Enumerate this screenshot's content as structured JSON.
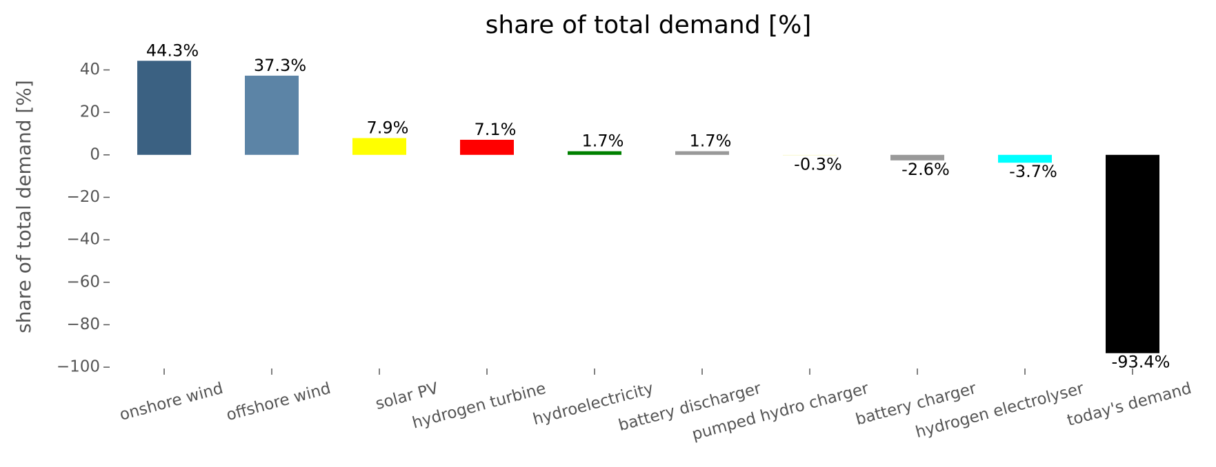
{
  "chart_data": {
    "type": "bar",
    "title": "share of total demand [%]",
    "ylabel": "share of total demand [%]",
    "categories": [
      "onshore wind",
      "offshore wind",
      "solar PV",
      "hydrogen turbine",
      "hydroelectricity",
      "battery discharger",
      "pumped hydro charger",
      "battery charger",
      "hydrogen electrolyser",
      "today's demand"
    ],
    "values": [
      44.3,
      37.3,
      7.9,
      7.1,
      1.7,
      1.7,
      -0.3,
      -2.6,
      -3.7,
      -93.4
    ],
    "value_labels": [
      "44.3%",
      "37.3%",
      "7.9%",
      "7.1%",
      "1.7%",
      "1.7%",
      "-0.3%",
      "-2.6%",
      "-3.7%",
      "-93.4%"
    ],
    "colors": [
      "#3b6182",
      "#5c84a6",
      "#ffff00",
      "#ff0000",
      "#008000",
      "#999999",
      "#f5f5c8",
      "#999999",
      "#00ffff",
      "#000000"
    ],
    "ylim": [
      -100.3,
      51.2
    ],
    "yticks": [
      {
        "value": -100,
        "label": "−100"
      },
      {
        "value": -80,
        "label": "−80"
      },
      {
        "value": -60,
        "label": "−60"
      },
      {
        "value": -40,
        "label": "−40"
      },
      {
        "value": -20,
        "label": "−20"
      },
      0,
      20,
      40
    ],
    "grid": false
  }
}
